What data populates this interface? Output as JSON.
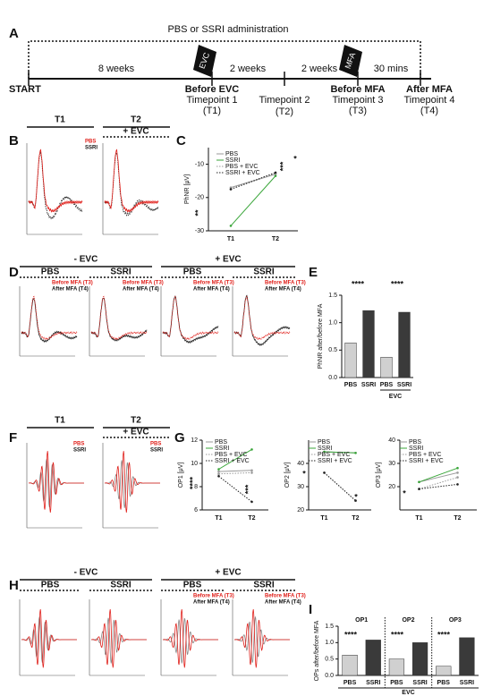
{
  "timeline": {
    "title": "PBS or SSRI administration",
    "start": "START",
    "durations": [
      "8 weeks",
      "2 weeks",
      "2 weeks",
      "30 mins"
    ],
    "flags": [
      "EVC",
      "MFA"
    ],
    "timepoints": [
      {
        "label": "Before EVC",
        "name": "Timepoint 1",
        "code": "(T1)"
      },
      {
        "name": "Timepoint 2",
        "code": "(T2)"
      },
      {
        "label": "Before MFA",
        "name": "Timepoint 3",
        "code": "(T3)"
      },
      {
        "label": "After MFA",
        "name": "Timepoint 4",
        "code": "(T4)"
      }
    ]
  },
  "panels": [
    "A",
    "B",
    "C",
    "D",
    "E",
    "F",
    "G",
    "H",
    "I"
  ],
  "panel_b": {
    "headers": [
      "T1",
      "T2"
    ],
    "treatment": "+ EVC",
    "legend": [
      "PBS",
      "SSRI"
    ]
  },
  "panel_d": {
    "groups": [
      "- EVC",
      "+ EVC"
    ],
    "columns": [
      "PBS",
      "SSRI",
      "PBS",
      "SSRI"
    ],
    "legend": [
      "Before MFA (T3)",
      "After MFA (T4)"
    ]
  },
  "panel_f": {
    "headers": [
      "T1",
      "T2"
    ],
    "treatment": "+ EVC",
    "legend": [
      "PBS",
      "SSRI"
    ]
  },
  "panel_h": {
    "groups": [
      "- EVC",
      "+ EVC"
    ],
    "columns": [
      "PBS",
      "SSRI",
      "PBS",
      "SSRI"
    ],
    "legend": [
      "Before MFA (T3)",
      "After MFA (T4)"
    ]
  },
  "chart_data": [
    {
      "type": "line",
      "ylabel": "PhNR [μV]",
      "categories": [
        "T1",
        "T2"
      ],
      "ylim": [
        -30,
        -5
      ],
      "yticks": [
        -30,
        -20,
        -10
      ],
      "series": [
        {
          "name": "PBS",
          "color": "#9a9a9a",
          "style": "solid",
          "values": [
            -17,
            -13
          ]
        },
        {
          "name": "SSRI",
          "color": "#3aa63a",
          "style": "solid",
          "values": [
            -28.5,
            -13.5
          ]
        },
        {
          "name": "PBS + EVC",
          "color": "#9a9a9a",
          "style": "dotted",
          "values": [
            -17.5,
            -12.8
          ]
        },
        {
          "name": "SSRI + EVC",
          "color": "#222222",
          "style": "dotted",
          "values": [
            -17.5,
            -12.5
          ]
        }
      ],
      "annotations": [
        "**",
        "***",
        "*"
      ]
    },
    {
      "type": "bar",
      "ylabel": "PhNR after/before MFA",
      "categories": [
        "PBS",
        "SSRI",
        "PBS",
        "SSRI"
      ],
      "colors": [
        "#d0d0d0",
        "#3a3a3a",
        "#d0d0d0",
        "#3a3a3a"
      ],
      "values": [
        0.63,
        1.22,
        0.37,
        1.19
      ],
      "ylim": [
        0,
        1.5
      ],
      "yticks": [
        {
          "value": 0,
          "label": "0.0"
        },
        0.5,
        {
          "value": 1,
          "label": "1.0"
        },
        1.5
      ],
      "xlabel": "EVC",
      "annotations": [
        "****",
        "****"
      ]
    },
    {
      "type": "line",
      "ylabel": "OP1 [μV]",
      "categories": [
        "T1",
        "T2"
      ],
      "ylim": [
        6,
        12
      ],
      "yticks": [
        6,
        8,
        10,
        12
      ],
      "series": [
        {
          "name": "PBS",
          "color": "#9a9a9a",
          "style": "solid",
          "values": [
            9.3,
            9.4
          ]
        },
        {
          "name": "SSRI",
          "color": "#3aa63a",
          "style": "solid",
          "values": [
            9.5,
            11.2
          ]
        },
        {
          "name": "PBS + EVC",
          "color": "#9a9a9a",
          "style": "dotted",
          "values": [
            9.1,
            9.2
          ]
        },
        {
          "name": "SSRI + EVC",
          "color": "#222222",
          "style": "dotted",
          "values": [
            8.9,
            6.7
          ]
        }
      ],
      "annotations": [
        "****",
        "***"
      ]
    },
    {
      "type": "line",
      "ylabel": "OP2 [μV]",
      "categories": [
        "T1",
        "T2"
      ],
      "ylim": [
        20,
        50
      ],
      "yticks": [
        20,
        30,
        40
      ],
      "series": [
        {
          "name": "PBS",
          "color": "#9a9a9a",
          "style": "solid",
          "values": [
            45,
            44.5
          ]
        },
        {
          "name": "SSRI",
          "color": "#3aa63a",
          "style": "solid",
          "values": [
            45,
            44.5
          ]
        },
        {
          "name": "PBS + EVC",
          "color": "#9a9a9a",
          "style": "dotted",
          "values": [
            36,
            24
          ]
        },
        {
          "name": "SSRI + EVC",
          "color": "#222222",
          "style": "dotted",
          "values": [
            36,
            24
          ]
        }
      ],
      "annotations": [
        "*",
        "*"
      ]
    },
    {
      "type": "line",
      "ylabel": "OP3 [μV]",
      "categories": [
        "T1",
        "T2"
      ],
      "ylim": [
        10,
        40
      ],
      "yticks": [
        20,
        30,
        40
      ],
      "series": [
        {
          "name": "PBS",
          "color": "#9a9a9a",
          "style": "solid",
          "values": [
            22,
            26
          ]
        },
        {
          "name": "SSRI",
          "color": "#3aa63a",
          "style": "solid",
          "values": [
            22,
            28
          ]
        },
        {
          "name": "PBS + EVC",
          "color": "#9a9a9a",
          "style": "dotted",
          "values": [
            19,
            24
          ]
        },
        {
          "name": "SSRI + EVC",
          "color": "#222222",
          "style": "dotted",
          "values": [
            19,
            21
          ]
        }
      ],
      "annotations": [
        "*"
      ]
    },
    {
      "type": "bar",
      "ylabel": "OPs after/before MFA",
      "categories": [
        "PBS",
        "SSRI",
        "PBS",
        "SSRI",
        "PBS",
        "SSRI"
      ],
      "groups": [
        "OP1",
        "OP2",
        "OP3"
      ],
      "colors": [
        "#d0d0d0",
        "#3a3a3a",
        "#d0d0d0",
        "#3a3a3a",
        "#d0d0d0",
        "#3a3a3a"
      ],
      "values": [
        0.62,
        1.08,
        0.5,
        1.0,
        0.28,
        1.15
      ],
      "ylim": [
        0,
        1.5
      ],
      "yticks": [
        {
          "value": 0,
          "label": "0.0"
        },
        0.5,
        {
          "value": 1,
          "label": "1.0"
        },
        1.5
      ],
      "xlabel": "EVC",
      "annotations": [
        "****",
        "****",
        "****"
      ]
    }
  ]
}
